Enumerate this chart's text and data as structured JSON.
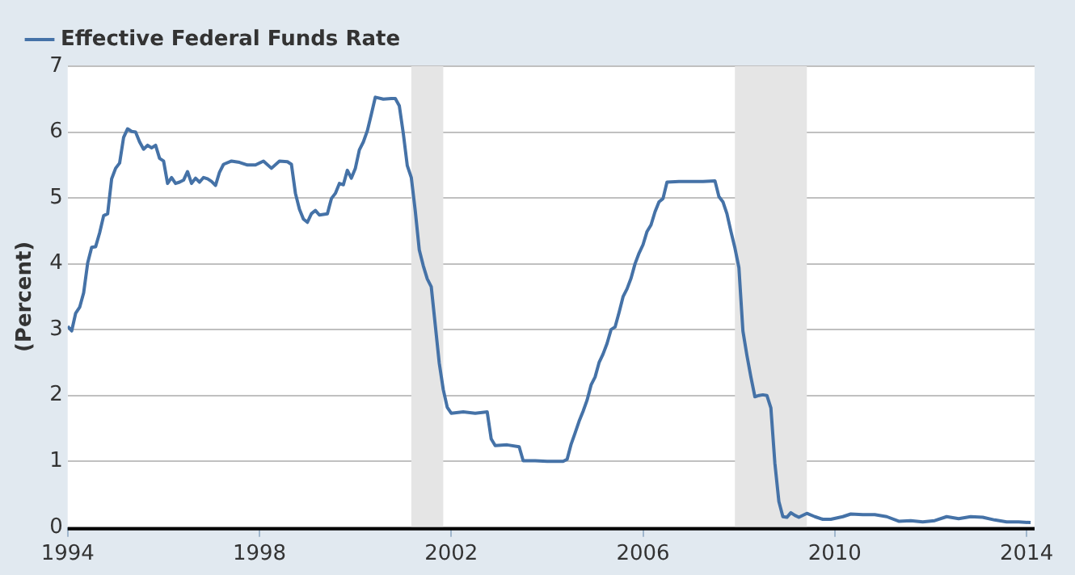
{
  "chart_data": {
    "type": "line",
    "ylabel": "(Percent)",
    "legend": "top left",
    "grid": "y",
    "marker": "none",
    "line_style": "solid",
    "xlim": [
      "1994-01",
      "2014-03"
    ],
    "xticks": [
      "1994",
      "1998",
      "2002",
      "2006",
      "2010",
      "2014"
    ],
    "ylim": [
      0,
      7
    ],
    "yticks": [
      0,
      1,
      2,
      3,
      4,
      5,
      6,
      7
    ],
    "bands": [
      {
        "axis": "x",
        "from": "2001-03",
        "to": "2001-11",
        "color": "#e5e5e5"
      },
      {
        "axis": "x",
        "from": "2007-12",
        "to": "2009-06",
        "color": "#e5e5e5"
      }
    ],
    "x": [
      "1994-01",
      "1994-02",
      "1994-03",
      "1994-04",
      "1994-05",
      "1994-06",
      "1994-07",
      "1994-08",
      "1994-09",
      "1994-10",
      "1994-11",
      "1994-12",
      "1995-01",
      "1995-02",
      "1995-03",
      "1995-04",
      "1995-05",
      "1995-06",
      "1995-07",
      "1995-08",
      "1995-09",
      "1995-10",
      "1995-11",
      "1995-12",
      "1996-01",
      "1996-02",
      "1996-03",
      "1996-04",
      "1996-05",
      "1996-06",
      "1996-07",
      "1996-08",
      "1996-09",
      "1996-10",
      "1996-11",
      "1996-12",
      "1997-01",
      "1997-02",
      "1997-03",
      "1997-04",
      "1997-06",
      "1997-08",
      "1997-10",
      "1997-12",
      "1998-02",
      "1998-04",
      "1998-06",
      "1998-08",
      "1998-09",
      "1998-10",
      "1998-11",
      "1998-12",
      "1999-01",
      "1999-02",
      "1999-03",
      "1999-04",
      "1999-06",
      "1999-07",
      "1999-08",
      "1999-09",
      "1999-10",
      "1999-11",
      "1999-12",
      "2000-01",
      "2000-02",
      "2000-03",
      "2000-04",
      "2000-05",
      "2000-06",
      "2000-08",
      "2000-10",
      "2000-11",
      "2000-12",
      "2001-01",
      "2001-02",
      "2001-03",
      "2001-04",
      "2001-05",
      "2001-06",
      "2001-07",
      "2001-08",
      "2001-09",
      "2001-10",
      "2001-11",
      "2001-12",
      "2002-01",
      "2002-04",
      "2002-07",
      "2002-10",
      "2002-11",
      "2002-12",
      "2003-03",
      "2003-06",
      "2003-07",
      "2003-10",
      "2004-01",
      "2004-05",
      "2004-06",
      "2004-07",
      "2004-08",
      "2004-09",
      "2004-10",
      "2004-11",
      "2004-12",
      "2005-01",
      "2005-02",
      "2005-03",
      "2005-04",
      "2005-05",
      "2005-06",
      "2005-07",
      "2005-08",
      "2005-09",
      "2005-10",
      "2005-11",
      "2005-12",
      "2006-01",
      "2006-02",
      "2006-03",
      "2006-04",
      "2006-05",
      "2006-06",
      "2006-07",
      "2006-10",
      "2007-01",
      "2007-04",
      "2007-07",
      "2007-08",
      "2007-09",
      "2007-10",
      "2007-11",
      "2007-12",
      "2008-01",
      "2008-02",
      "2008-03",
      "2008-04",
      "2008-05",
      "2008-06",
      "2008-07",
      "2008-08",
      "2008-09",
      "2008-10",
      "2008-11",
      "2008-12",
      "2009-01",
      "2009-02",
      "2009-03",
      "2009-04",
      "2009-06",
      "2009-08",
      "2009-10",
      "2009-12",
      "2010-03",
      "2010-05",
      "2010-08",
      "2010-11",
      "2011-02",
      "2011-05",
      "2011-08",
      "2011-11",
      "2012-02",
      "2012-05",
      "2012-08",
      "2012-11",
      "2013-02",
      "2013-05",
      "2013-08",
      "2013-11",
      "2014-02"
    ],
    "series": [
      {
        "name": "Effective Federal Funds Rate",
        "color": "#4572a7",
        "values": [
          3.05,
          2.98,
          3.25,
          3.34,
          3.56,
          4.01,
          4.25,
          4.26,
          4.47,
          4.73,
          4.76,
          5.29,
          5.45,
          5.53,
          5.92,
          6.05,
          6.01,
          6.0,
          5.85,
          5.74,
          5.8,
          5.76,
          5.8,
          5.6,
          5.56,
          5.22,
          5.31,
          5.22,
          5.24,
          5.27,
          5.4,
          5.22,
          5.3,
          5.24,
          5.31,
          5.29,
          5.25,
          5.19,
          5.39,
          5.51,
          5.56,
          5.54,
          5.5,
          5.5,
          5.56,
          5.45,
          5.56,
          5.55,
          5.51,
          5.07,
          4.83,
          4.68,
          4.63,
          4.76,
          4.81,
          4.74,
          4.76,
          4.99,
          5.07,
          5.22,
          5.2,
          5.42,
          5.3,
          5.45,
          5.73,
          5.85,
          6.02,
          6.27,
          6.53,
          6.5,
          6.51,
          6.51,
          6.4,
          5.98,
          5.49,
          5.31,
          4.8,
          4.21,
          3.97,
          3.77,
          3.65,
          3.07,
          2.49,
          2.09,
          1.82,
          1.73,
          1.75,
          1.73,
          1.75,
          1.34,
          1.24,
          1.25,
          1.22,
          1.01,
          1.01,
          1.0,
          1.0,
          1.03,
          1.26,
          1.43,
          1.61,
          1.76,
          1.93,
          2.16,
          2.28,
          2.5,
          2.63,
          2.79,
          3.0,
          3.04,
          3.26,
          3.5,
          3.62,
          3.78,
          4.0,
          4.16,
          4.29,
          4.49,
          4.59,
          4.79,
          4.94,
          4.99,
          5.24,
          5.25,
          5.25,
          5.25,
          5.26,
          5.02,
          4.94,
          4.76,
          4.49,
          4.24,
          3.94,
          2.98,
          2.61,
          2.28,
          1.98,
          2.0,
          2.01,
          2.0,
          1.81,
          0.97,
          0.39,
          0.16,
          0.15,
          0.22,
          0.18,
          0.15,
          0.21,
          0.16,
          0.12,
          0.12,
          0.16,
          0.2,
          0.19,
          0.19,
          0.16,
          0.09,
          0.1,
          0.08,
          0.1,
          0.16,
          0.13,
          0.16,
          0.15,
          0.11,
          0.08,
          0.08,
          0.07
        ]
      }
    ]
  }
}
